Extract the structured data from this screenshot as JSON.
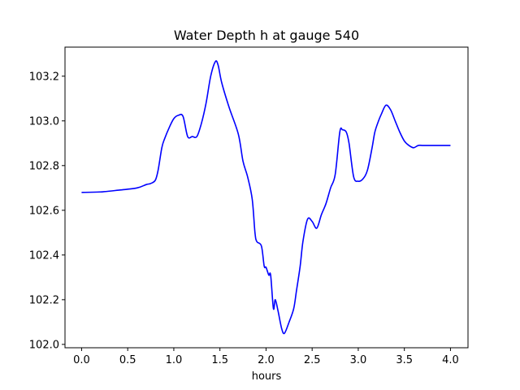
{
  "chart_data": {
    "type": "line",
    "title": "Water Depth h at gauge 540",
    "xlabel": "hours",
    "ylabel": "",
    "xlim": [
      -0.18,
      4.19
    ],
    "ylim": [
      101.985,
      103.33
    ],
    "xticks": [
      0.0,
      0.5,
      1.0,
      1.5,
      2.0,
      2.5,
      3.0,
      3.5,
      4.0
    ],
    "xtick_labels": [
      "0.0",
      "0.5",
      "1.0",
      "1.5",
      "2.0",
      "2.5",
      "3.0",
      "3.5",
      "4.0"
    ],
    "yticks": [
      102.0,
      102.2,
      102.4,
      102.6,
      102.8,
      103.0,
      103.2
    ],
    "ytick_labels": [
      "102.0",
      "102.2",
      "102.4",
      "102.6",
      "102.8",
      "103.0",
      "103.2"
    ],
    "grid": false,
    "line_color": "#0000ff",
    "series": [
      {
        "x": [
          0.0,
          0.2,
          0.4,
          0.6,
          0.7,
          0.75,
          0.8,
          0.83,
          0.87,
          0.9,
          0.95,
          1.0,
          1.05,
          1.1,
          1.15,
          1.2,
          1.25,
          1.3,
          1.35,
          1.4,
          1.45,
          1.48,
          1.52,
          1.6,
          1.7,
          1.75,
          1.8,
          1.85,
          1.88,
          1.9,
          1.95,
          1.98,
          2.0,
          2.03,
          2.05,
          2.08,
          2.1,
          2.13,
          2.17,
          2.2,
          2.25,
          2.3,
          2.33,
          2.37,
          2.4,
          2.45,
          2.5,
          2.55,
          2.6,
          2.65,
          2.7,
          2.75,
          2.8,
          2.83,
          2.87,
          2.9,
          2.95,
          3.0,
          3.05,
          3.1,
          3.15,
          3.18,
          3.22,
          3.25,
          3.3,
          3.35,
          3.4,
          3.45,
          3.5,
          3.55,
          3.6,
          3.65,
          3.7,
          3.75,
          3.8,
          3.83,
          3.87,
          3.9,
          3.95,
          4.0
        ],
        "y": [
          102.68,
          102.682,
          102.69,
          102.7,
          102.715,
          102.72,
          102.735,
          102.78,
          102.88,
          102.92,
          102.97,
          103.01,
          103.025,
          103.02,
          102.93,
          102.93,
          102.93,
          102.99,
          103.08,
          103.2,
          103.265,
          103.25,
          103.17,
          103.06,
          102.94,
          102.82,
          102.75,
          102.65,
          102.5,
          102.46,
          102.44,
          102.35,
          102.345,
          102.31,
          102.31,
          102.16,
          102.2,
          102.15,
          102.07,
          102.05,
          102.1,
          102.16,
          102.24,
          102.35,
          102.46,
          102.56,
          102.55,
          102.52,
          102.58,
          102.63,
          102.7,
          102.76,
          102.95,
          102.96,
          102.95,
          102.9,
          102.75,
          102.73,
          102.74,
          102.78,
          102.88,
          102.95,
          103.0,
          103.03,
          103.07,
          103.05,
          103.0,
          102.95,
          102.91,
          102.89,
          102.88,
          102.89,
          102.89,
          102.89,
          102.89,
          102.89,
          102.89,
          102.89,
          102.89,
          102.89
        ]
      }
    ]
  }
}
